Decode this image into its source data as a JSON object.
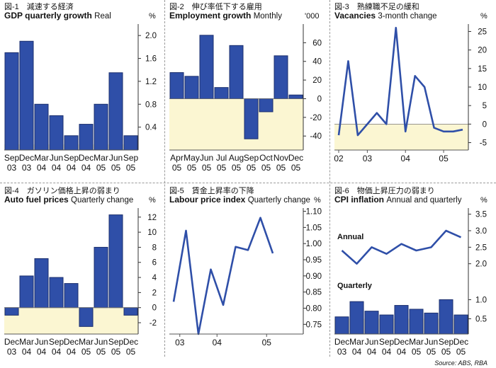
{
  "source": "Source: ABS, RBA",
  "chart_data": [
    {
      "type": "bar",
      "fig": "図-1　減速する経済",
      "title": "GDP quarterly growth",
      "subtitle": "Real",
      "unit": "%",
      "categories": [
        [
          "Sep",
          "03"
        ],
        [
          "Dec",
          "03"
        ],
        [
          "Mar",
          "04"
        ],
        [
          "Jun",
          "04"
        ],
        [
          "Sep",
          "04"
        ],
        [
          "Dec",
          "04"
        ],
        [
          "Mar",
          "05"
        ],
        [
          "Jun",
          "05"
        ],
        [
          "Sep",
          "05"
        ]
      ],
      "values": [
        1.7,
        1.9,
        0.8,
        0.6,
        0.25,
        0.45,
        0.8,
        1.35,
        0.25
      ],
      "ylim": [
        0,
        2.2
      ],
      "yticks": [
        0.4,
        0.8,
        1.2,
        1.6,
        2.0
      ],
      "ytick_labels": [
        "0.4",
        "0.8",
        "1.2",
        "1.6",
        "2.0"
      ],
      "colors": {
        "bar": "#2f4fa8",
        "shade": "#fbf6d2"
      }
    },
    {
      "type": "bar",
      "fig": "図-2　伸び率低下する雇用",
      "title": "Employment growth",
      "subtitle": "Monthly",
      "unit": "'000",
      "categories": [
        [
          "Apr",
          "05"
        ],
        [
          "May",
          "05"
        ],
        [
          "Jun",
          "05"
        ],
        [
          "Jul",
          "05"
        ],
        [
          "Aug",
          "05"
        ],
        [
          "Sep",
          "05"
        ],
        [
          "Oct",
          "05"
        ],
        [
          "Nov",
          "05"
        ],
        [
          "Dec",
          "05"
        ]
      ],
      "values": [
        28,
        24,
        68,
        12,
        57,
        -43,
        -14,
        46,
        4
      ],
      "ylim": [
        -55,
        80
      ],
      "yticks": [
        -40,
        -20,
        0,
        20,
        40,
        60
      ],
      "ytick_labels": [
        "-40",
        "-20",
        "0",
        "20",
        "40",
        "60"
      ],
      "colors": {
        "bar": "#2f4fa8",
        "shade": "#fbf6d2"
      }
    },
    {
      "type": "line",
      "fig": "図-3　熟練職不足の緩和",
      "title": "Vacancies",
      "subtitle": "3-month change",
      "unit": "%",
      "x": [
        0,
        1,
        2,
        3,
        4,
        5,
        6,
        7,
        8,
        9,
        10,
        11,
        12,
        13
      ],
      "y": [
        -3,
        17,
        -3,
        0,
        3,
        0,
        26,
        -2,
        13,
        10,
        -1,
        -2,
        -2,
        -1.5
      ],
      "ylim": [
        -7,
        27
      ],
      "yticks": [
        -5,
        0,
        5,
        10,
        15,
        20,
        25
      ],
      "ytick_labels": [
        "-5",
        "0",
        "5",
        "10",
        "15",
        "20",
        "25"
      ],
      "xtick_labels": [
        {
          "label": "02",
          "x": 0
        },
        {
          "label": "03",
          "x": 3
        },
        {
          "label": "04",
          "x": 7
        },
        {
          "label": "05",
          "x": 11
        }
      ],
      "colors": {
        "line": "#2f4fa8",
        "shade": "#fbf6d2"
      }
    },
    {
      "type": "bar",
      "fig": "図-4　ガソリン価格上昇の弱まり",
      "title": "Auto fuel prices",
      "subtitle": "Quarterly change",
      "unit": "%",
      "categories": [
        [
          "Dec",
          "03"
        ],
        [
          "Mar",
          "04"
        ],
        [
          "Jun",
          "04"
        ],
        [
          "Sep",
          "04"
        ],
        [
          "Dec",
          "04"
        ],
        [
          "Mar",
          "05"
        ],
        [
          "Jun",
          "05"
        ],
        [
          "Sep",
          "05"
        ],
        [
          "Dec",
          "05"
        ]
      ],
      "values": [
        -1,
        4.2,
        6.5,
        4,
        3.2,
        -2.5,
        8,
        12.3,
        -1
      ],
      "ylim": [
        -3.5,
        13.2
      ],
      "yticks": [
        -2,
        0,
        2,
        4,
        6,
        8,
        10,
        12
      ],
      "ytick_labels": [
        "-2",
        "0",
        "2",
        "4",
        "6",
        "8",
        "10",
        "12"
      ],
      "colors": {
        "bar": "#2f4fa8",
        "shade": "#fbf6d2"
      }
    },
    {
      "type": "line",
      "fig": "図-5　賃金上昇率の下降",
      "title": "Labour price index",
      "subtitle": "Quarterly change",
      "unit": "%",
      "x": [
        0,
        1,
        2,
        3,
        4,
        5,
        6,
        7,
        8,
        9,
        10
      ],
      "y": [
        0.82,
        1.04,
        0.72,
        0.92,
        0.81,
        0.99,
        0.98,
        1.08,
        0.97,
        null,
        null
      ],
      "ylim": [
        0.72,
        1.11
      ],
      "yticks": [
        0.75,
        0.8,
        0.85,
        0.9,
        0.95,
        1.0,
        1.05,
        1.1
      ],
      "ytick_labels": [
        "0.75",
        "0.80",
        "0.85",
        "0.90",
        "0.95",
        "1.00",
        "1.05",
        "1.10"
      ],
      "xtick_labels": [
        {
          "label": "03",
          "x": 0.5
        },
        {
          "label": "04",
          "x": 3.5
        },
        {
          "label": "05",
          "x": 7.5
        }
      ],
      "colors": {
        "line": "#2f4fa8"
      }
    },
    {
      "type": "bar",
      "fig": "図-6　物価上昇圧力の弱まり",
      "title": "CPI inflation",
      "subtitle": "Annual and quarterly",
      "unit": "%",
      "categories": [
        [
          "Dec",
          "03"
        ],
        [
          "Mar",
          "04"
        ],
        [
          "Jun",
          "04"
        ],
        [
          "Sep",
          "04"
        ],
        [
          "Dec",
          "04"
        ],
        [
          "Mar",
          "05"
        ],
        [
          "Jun",
          "05"
        ],
        [
          "Sep",
          "05"
        ],
        [
          "Dec",
          "05"
        ]
      ],
      "series": [
        {
          "name": "Annual",
          "type": "line",
          "values": [
            2.4,
            2.0,
            2.5,
            2.3,
            2.6,
            2.4,
            2.5,
            3.0,
            2.8
          ]
        },
        {
          "name": "Quarterly",
          "type": "bar",
          "values": [
            0.55,
            0.95,
            0.7,
            0.6,
            0.85,
            0.75,
            0.65,
            1.0,
            0.6
          ]
        }
      ],
      "ylim_annual": [
        1.8,
        3.6
      ],
      "ylim_quarterly": [
        0.1,
        1.25
      ],
      "yticks_annual": [
        2.0,
        2.5,
        3.0,
        3.5
      ],
      "ytick_labels_annual": [
        "2.0",
        "2.5",
        "3.0",
        "3.5"
      ],
      "yticks_quarterly": [
        0.5,
        1.0
      ],
      "ytick_labels_quarterly": [
        "0.5",
        "1.0"
      ],
      "colors": {
        "bar": "#2f4fa8",
        "line": "#2f4fa8",
        "shade": "#fbf6d2"
      }
    }
  ]
}
